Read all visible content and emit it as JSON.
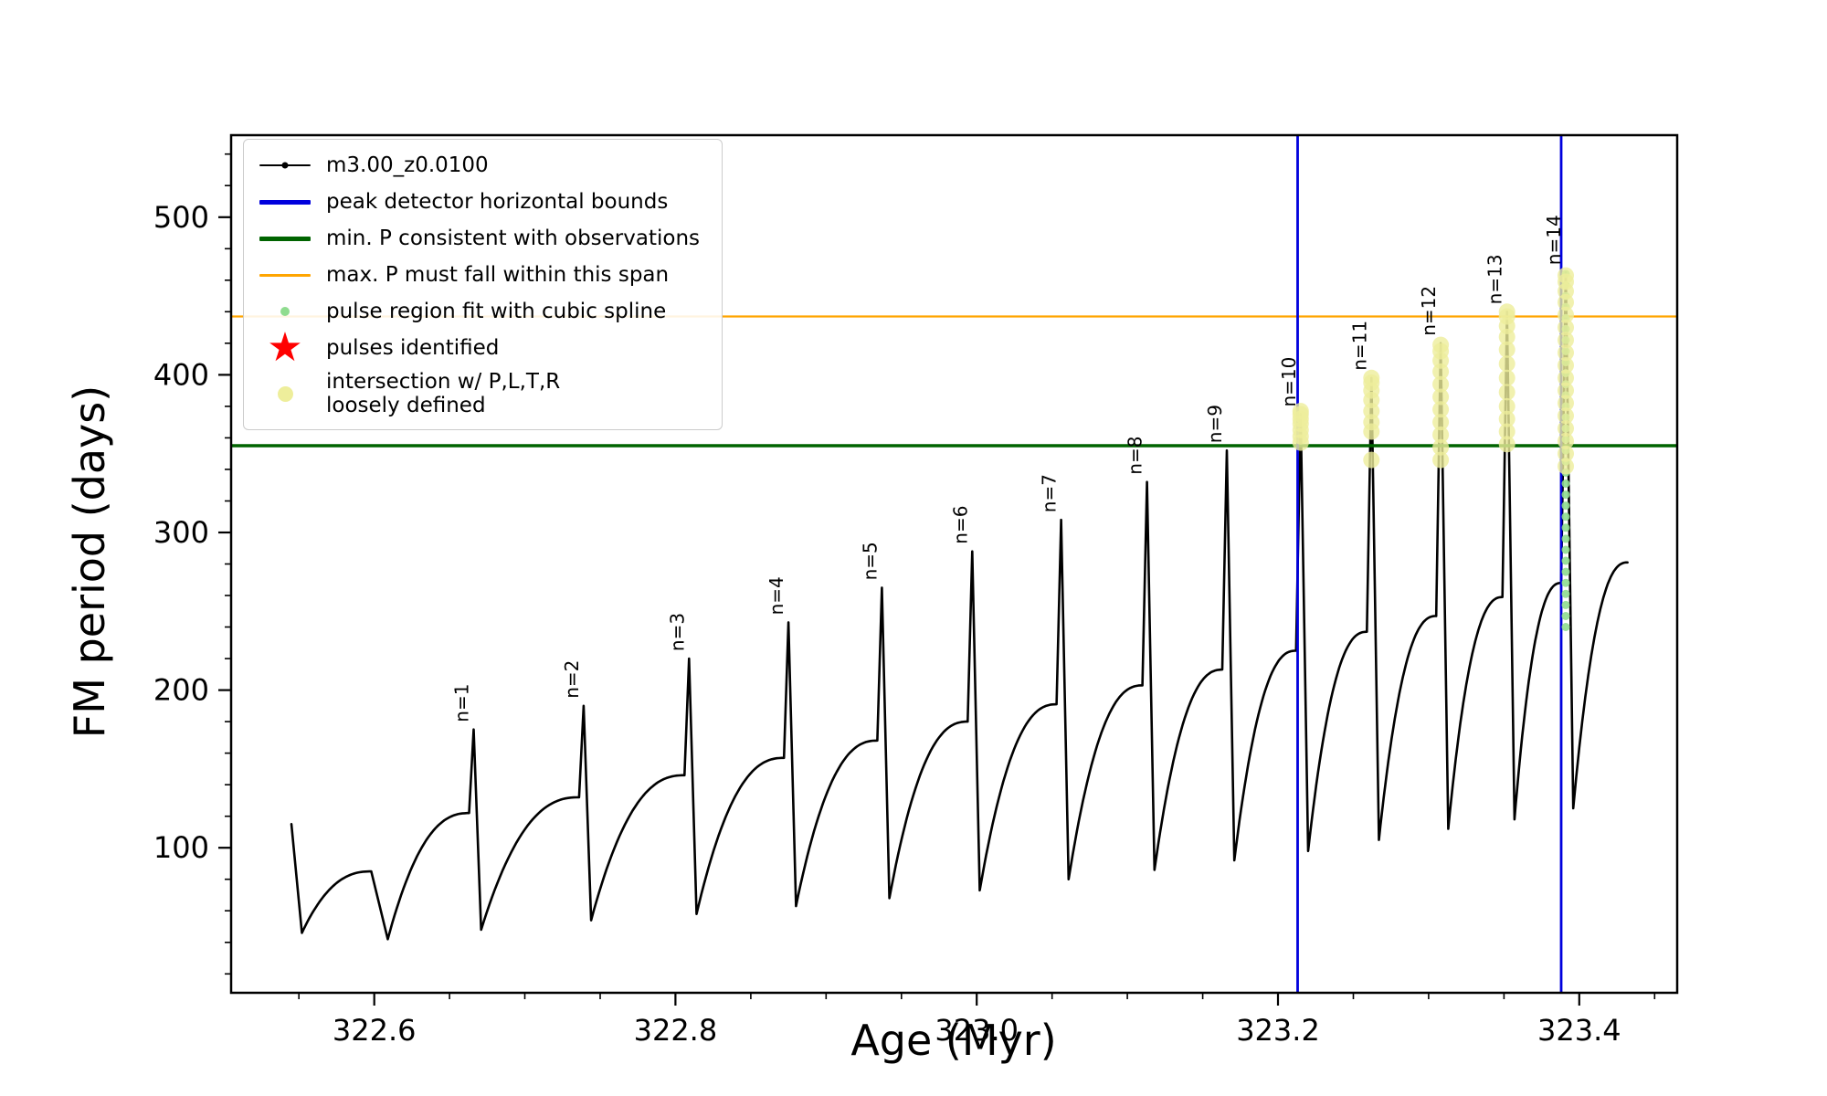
{
  "chart_data": {
    "type": "line",
    "xlabel": "Age (Myr)",
    "ylabel": "FM period (days)",
    "xlim": [
      322.505,
      323.465
    ],
    "ylim": [
      8,
      552
    ],
    "xticks": [
      322.6,
      322.8,
      323.0,
      323.2,
      323.4
    ],
    "xtick_labels": [
      "322.6",
      "322.8",
      "323.0",
      "323.2",
      "323.4"
    ],
    "yticks": [
      100,
      200,
      300,
      400,
      500
    ],
    "ytick_labels": [
      "100",
      "200",
      "300",
      "400",
      "500"
    ],
    "x_minor_step": 0.05,
    "y_minor_step": 20,
    "series_label": "m3.00_z0.0100",
    "colors": {
      "curve": "#000000",
      "peak_detector_bounds": "#0000dd",
      "min_period_line": "#006400",
      "max_period_line": "#ffa500",
      "spline_dot": "#8fdc8f",
      "pulse_star": "#ff0000",
      "intersection_dot": "#eeee9b"
    },
    "vlines": [
      {
        "name": "peak-detector-left-bound",
        "x": 323.213
      },
      {
        "name": "peak-detector-right-bound",
        "x": 323.388
      }
    ],
    "hlines": [
      {
        "name": "min-P-consistent-with-observations",
        "y": 355,
        "color": "#006400",
        "width": 3.5
      },
      {
        "name": "max-P-must-fall-within-span",
        "y": 437,
        "color": "#ffa500",
        "width": 2.2
      }
    ],
    "main_curve": {
      "start": [
        322.545,
        115
      ],
      "cycles": [
        {
          "min": [
            322.552,
            46
          ],
          "plateau": [
            322.598,
            85
          ],
          "peak": null,
          "label": null
        },
        {
          "min": [
            322.609,
            42
          ],
          "plateau": [
            322.663,
            122
          ],
          "peak": [
            322.666,
            175
          ],
          "label": "n=1"
        },
        {
          "min": [
            322.671,
            48
          ],
          "plateau": [
            322.736,
            132
          ],
          "peak": [
            322.739,
            190
          ],
          "label": "n=2"
        },
        {
          "min": [
            322.744,
            54
          ],
          "plateau": [
            322.806,
            146
          ],
          "peak": [
            322.809,
            220
          ],
          "label": "n=3"
        },
        {
          "min": [
            322.814,
            58
          ],
          "plateau": [
            322.872,
            157
          ],
          "peak": [
            322.875,
            243
          ],
          "label": "n=4"
        },
        {
          "min": [
            322.88,
            63
          ],
          "plateau": [
            322.934,
            168
          ],
          "peak": [
            322.937,
            265
          ],
          "label": "n=5"
        },
        {
          "min": [
            322.942,
            68
          ],
          "plateau": [
            322.994,
            180
          ],
          "peak": [
            322.997,
            288
          ],
          "label": "n=6"
        },
        {
          "min": [
            323.002,
            73
          ],
          "plateau": [
            323.053,
            191
          ],
          "peak": [
            323.056,
            308
          ],
          "label": "n=7"
        },
        {
          "min": [
            323.061,
            80
          ],
          "plateau": [
            323.11,
            203
          ],
          "peak": [
            323.113,
            332
          ],
          "label": "n=8"
        },
        {
          "min": [
            323.118,
            86
          ],
          "plateau": [
            323.163,
            213
          ],
          "peak": [
            323.166,
            352
          ],
          "label": "n=9"
        },
        {
          "min": [
            323.171,
            92
          ],
          "plateau": [
            323.212,
            225
          ],
          "peak": [
            323.215,
            375
          ],
          "label": "n=10"
        },
        {
          "min": [
            323.22,
            98
          ],
          "plateau": [
            323.259,
            237
          ],
          "peak": [
            323.262,
            398
          ],
          "label": "n=11"
        },
        {
          "min": [
            323.267,
            105
          ],
          "plateau": [
            323.305,
            247
          ],
          "peak": [
            323.308,
            420
          ],
          "label": "n=12"
        },
        {
          "min": [
            323.313,
            112
          ],
          "plateau": [
            323.349,
            259
          ],
          "peak": [
            323.352,
            440
          ],
          "label": "n=13"
        },
        {
          "min": [
            323.357,
            118
          ],
          "plateau": [
            323.388,
            268
          ],
          "peak": [
            323.391,
            465
          ],
          "label": "n=14"
        },
        {
          "min": [
            323.396,
            125
          ],
          "plateau": [
            323.432,
            281
          ],
          "peak": null,
          "label": null
        }
      ]
    },
    "intersection_clusters": [
      {
        "x": 323.215,
        "ys": [
          357,
          361,
          365,
          369,
          372,
          375,
          377
        ]
      },
      {
        "x": 323.262,
        "ys": [
          346,
          364,
          370,
          377,
          384,
          390,
          395,
          398
        ]
      },
      {
        "x": 323.308,
        "ys": [
          346,
          354,
          362,
          370,
          378,
          386,
          394,
          402,
          409,
          415,
          419
        ]
      },
      {
        "x": 323.352,
        "ys": [
          356,
          364,
          372,
          380,
          389,
          398,
          407,
          416,
          424,
          431,
          437,
          440
        ]
      },
      {
        "x": 323.391,
        "ys": [
          342,
          350,
          358,
          366,
          374,
          382,
          390,
          398,
          406,
          414,
          422,
          430,
          438,
          446,
          453,
          459,
          463
        ]
      }
    ],
    "spline_fit_dots": {
      "x": 323.391,
      "y_start": 240,
      "y_end": 464,
      "step": 7
    }
  },
  "legend": {
    "items": [
      {
        "label": "m3.00_z0.0100",
        "marker": "line-dot",
        "color": "#000000",
        "thickness": 2
      },
      {
        "label": "peak detector horizontal bounds",
        "marker": "line",
        "color": "#0000dd",
        "thickness": 5
      },
      {
        "label": "min. P consistent with observations",
        "marker": "line",
        "color": "#006400",
        "thickness": 5
      },
      {
        "label": "max. P must fall within this span",
        "marker": "line",
        "color": "#ffa500",
        "thickness": 3
      },
      {
        "label": "pulse region fit with cubic spline",
        "marker": "dot",
        "color": "#8fdc8f",
        "size": 10
      },
      {
        "label": "pulses identified",
        "marker": "star",
        "color": "#ff0000",
        "size": 44
      },
      {
        "label": "intersection w/ P,L,T,R\nloosely defined",
        "marker": "dot",
        "color": "#eeee9b",
        "size": 17
      }
    ]
  }
}
